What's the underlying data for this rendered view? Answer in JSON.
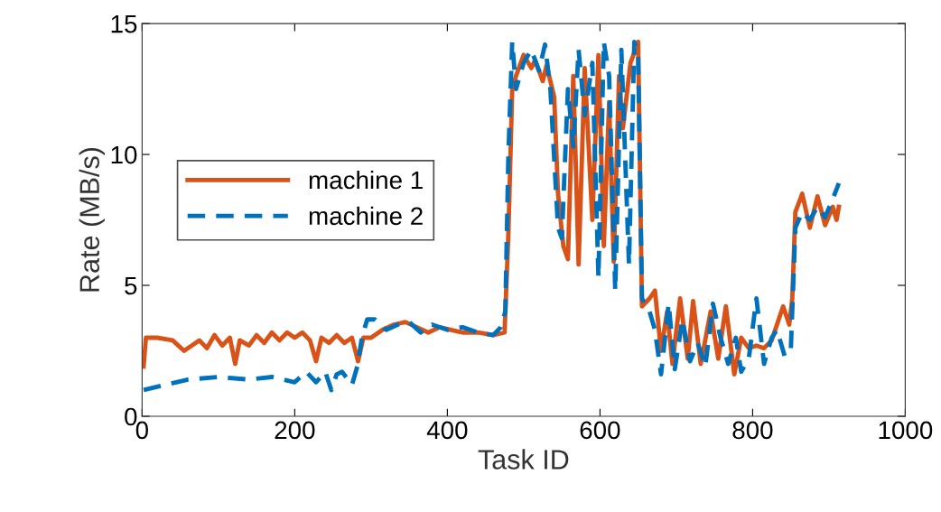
{
  "chart_data": {
    "type": "line",
    "xlabel": "Task ID",
    "ylabel": "Rate (MB/s)",
    "xlim": [
      0,
      1000
    ],
    "ylim": [
      0,
      15
    ],
    "xticks": [
      0,
      200,
      400,
      600,
      800,
      1000
    ],
    "yticks": [
      0,
      5,
      10,
      15
    ],
    "grid": false,
    "legend": "left",
    "series": [
      {
        "name": "machine 1",
        "color": "#d95319",
        "line_style": "solid",
        "x": [
          2,
          5,
          20,
          40,
          55,
          65,
          75,
          85,
          95,
          105,
          115,
          122,
          128,
          140,
          150,
          160,
          170,
          180,
          190,
          200,
          210,
          220,
          228,
          235,
          245,
          255,
          265,
          275,
          283,
          290,
          300,
          315,
          330,
          345,
          360,
          375,
          390,
          405,
          420,
          440,
          460,
          475,
          480,
          485,
          490,
          500,
          510,
          515,
          525,
          530,
          540,
          545,
          552,
          558,
          565,
          572,
          580,
          590,
          598,
          605,
          612,
          618,
          625,
          630,
          640,
          650,
          655,
          665,
          672,
          680,
          688,
          695,
          705,
          715,
          722,
          732,
          745,
          755,
          765,
          776,
          785,
          795,
          805,
          815,
          825,
          840,
          848,
          852,
          856,
          865,
          875,
          885,
          895,
          905,
          910,
          913
        ],
        "values": [
          1.9,
          3.0,
          3.0,
          2.9,
          2.5,
          2.7,
          2.9,
          2.6,
          3.1,
          2.7,
          3.0,
          2.0,
          2.9,
          2.7,
          3.1,
          2.8,
          3.2,
          2.9,
          3.2,
          3.0,
          3.2,
          2.9,
          2.1,
          3.0,
          2.8,
          3.1,
          2.8,
          3.0,
          2.1,
          3.0,
          3.0,
          3.3,
          3.5,
          3.6,
          3.4,
          3.2,
          3.4,
          3.3,
          3.2,
          3.2,
          3.1,
          3.2,
          7.0,
          12.5,
          13.0,
          13.8,
          13.3,
          13.6,
          12.8,
          13.4,
          12.2,
          8.5,
          6.5,
          6.0,
          13.0,
          5.8,
          13.3,
          7.5,
          13.8,
          6.5,
          12.0,
          5.9,
          13.0,
          11.0,
          13.5,
          14.3,
          4.2,
          4.5,
          4.8,
          2.5,
          4.0,
          2.0,
          4.5,
          2.2,
          4.4,
          2.0,
          4.0,
          2.2,
          4.2,
          1.6,
          3.0,
          2.6,
          2.7,
          2.6,
          2.9,
          4.2,
          3.5,
          4.5,
          7.8,
          8.5,
          7.2,
          8.4,
          7.3,
          8.0,
          7.5,
          8.0
        ]
      },
      {
        "name": "machine 2",
        "color": "#0072bd",
        "line_style": "dashed",
        "x": [
          2,
          30,
          60,
          100,
          140,
          170,
          200,
          215,
          228,
          240,
          248,
          255,
          262,
          275,
          282,
          288,
          295,
          305,
          320,
          335,
          350,
          365,
          380,
          400,
          420,
          440,
          460,
          470,
          476,
          480,
          485,
          490,
          500,
          510,
          520,
          528,
          535,
          545,
          550,
          558,
          565,
          572,
          580,
          590,
          598,
          605,
          612,
          620,
          628,
          638,
          645,
          650,
          655,
          665,
          672,
          680,
          690,
          698,
          708,
          718,
          728,
          738,
          748,
          758,
          768,
          778,
          785,
          795,
          805,
          815,
          825,
          832,
          842,
          850,
          856,
          865,
          875,
          885,
          895,
          905,
          913
        ],
        "values": [
          1.0,
          1.2,
          1.4,
          1.5,
          1.4,
          1.5,
          1.3,
          1.7,
          1.3,
          1.7,
          1.0,
          1.6,
          1.7,
          1.2,
          1.9,
          3.0,
          3.7,
          3.7,
          3.3,
          3.5,
          3.6,
          3.2,
          3.5,
          3.3,
          3.4,
          3.2,
          3.1,
          3.4,
          4.0,
          10.0,
          14.3,
          12.5,
          13.5,
          14.0,
          13.2,
          14.2,
          12.5,
          7.2,
          6.8,
          12.5,
          10.3,
          14.0,
          11.5,
          13.5,
          5.3,
          14.3,
          13.0,
          4.8,
          14.0,
          5.8,
          14.3,
          13.8,
          4.5,
          4.0,
          3.3,
          1.6,
          4.3,
          1.8,
          3.7,
          2.1,
          2.8,
          1.9,
          4.3,
          3.0,
          2.0,
          3.0,
          1.7,
          2.2,
          4.5,
          2.0,
          3.0,
          3.3,
          2.3,
          2.5,
          7.2,
          7.8,
          7.5,
          8.0,
          7.6,
          8.3,
          8.9
        ]
      }
    ]
  }
}
